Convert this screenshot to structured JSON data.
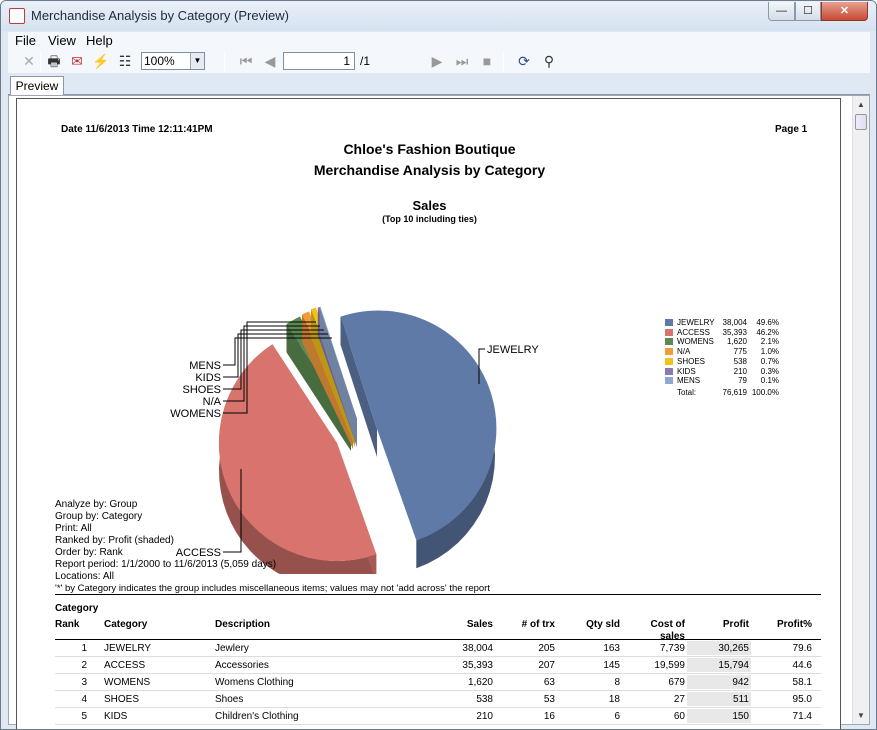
{
  "window": {
    "title": "Merchandise Analysis by Category (Preview)",
    "min": "—",
    "max": "☐",
    "close": "✕"
  },
  "menu": {
    "file": "File",
    "view": "View",
    "help": "Help"
  },
  "toolbar": {
    "zoom": "100%",
    "page": "1",
    "page_total": "/1"
  },
  "tab": {
    "label": "Preview"
  },
  "report": {
    "date_line": "Date 11/6/2013  Time 12:11:41PM",
    "page_line": "Page  1",
    "company": "Chloe's Fashion Boutique",
    "title": "Merchandise Analysis by Category"
  },
  "chart_data": {
    "type": "pie",
    "title": "Sales",
    "subtitle": "(Top 10 including ties)",
    "slices": [
      {
        "name": "JEWELRY",
        "value": 38004,
        "pct": "49.6%",
        "color": "#5f7aa6"
      },
      {
        "name": "ACCESS",
        "value": 35393,
        "pct": "46.2%",
        "color": "#d8736d"
      },
      {
        "name": "WOMENS",
        "value": 1620,
        "pct": "2.1%",
        "color": "#5a8a52"
      },
      {
        "name": "N/A",
        "value": 775,
        "pct": "1.0%",
        "color": "#f39b3b"
      },
      {
        "name": "SHOES",
        "value": 538,
        "pct": "0.7%",
        "color": "#f2c21a"
      },
      {
        "name": "KIDS",
        "value": 210,
        "pct": "0.3%",
        "color": "#8b7ab0"
      },
      {
        "name": "MENS",
        "value": 79,
        "pct": "0.1%",
        "color": "#8fa7cf"
      }
    ],
    "legend_rows": [
      {
        "name": "JEWELRY",
        "value": "38,004",
        "pct": "49.6%"
      },
      {
        "name": "ACCESS",
        "value": "35,393",
        "pct": "46.2%"
      },
      {
        "name": "WOMENS",
        "value": "1,620",
        "pct": "2.1%"
      },
      {
        "name": "N/A",
        "value": "775",
        "pct": "1.0%"
      },
      {
        "name": "SHOES",
        "value": "538",
        "pct": "0.7%"
      },
      {
        "name": "KIDS",
        "value": "210",
        "pct": "0.3%"
      },
      {
        "name": "MENS",
        "value": "79",
        "pct": "0.1%"
      }
    ],
    "legend_total": {
      "label": "Total:",
      "value": "76,619",
      "pct": "100.0%"
    },
    "legend_position": "right"
  },
  "params": [
    "Analyze by: Group",
    "Group by: Category",
    "Print: All",
    "Ranked by: Profit (shaded)",
    "Order by: Rank",
    "Report period: 1/1/2000 to 11/6/2013 (5,059 days)",
    "Locations: All",
    "'*' by Category indicates the group includes miscellaneous items; values may not 'add across' the report"
  ],
  "table": {
    "group_header": "Category",
    "columns": [
      "Rank",
      "Category",
      "Description",
      "Sales",
      "# of trx",
      "Qty sld",
      "Cost of",
      "sales",
      "Profit",
      "Profit%"
    ],
    "rows": [
      [
        "1",
        "JEWELRY",
        "Jewlery",
        "38,004",
        "205",
        "163",
        "7,739",
        "30,265",
        "79.6"
      ],
      [
        "2",
        "ACCESS",
        "Accessories",
        "35,393",
        "207",
        "145",
        "19,599",
        "15,794",
        "44.6"
      ],
      [
        "3",
        "WOMENS",
        "Womens Clothing",
        "1,620",
        "63",
        "8",
        "679",
        "942",
        "58.1"
      ],
      [
        "4",
        "SHOES",
        "Shoes",
        "538",
        "53",
        "18",
        "27",
        "511",
        "95.0"
      ],
      [
        "5",
        "KIDS",
        "Children's Clothing",
        "210",
        "16",
        "6",
        "60",
        "150",
        "71.4"
      ]
    ]
  }
}
